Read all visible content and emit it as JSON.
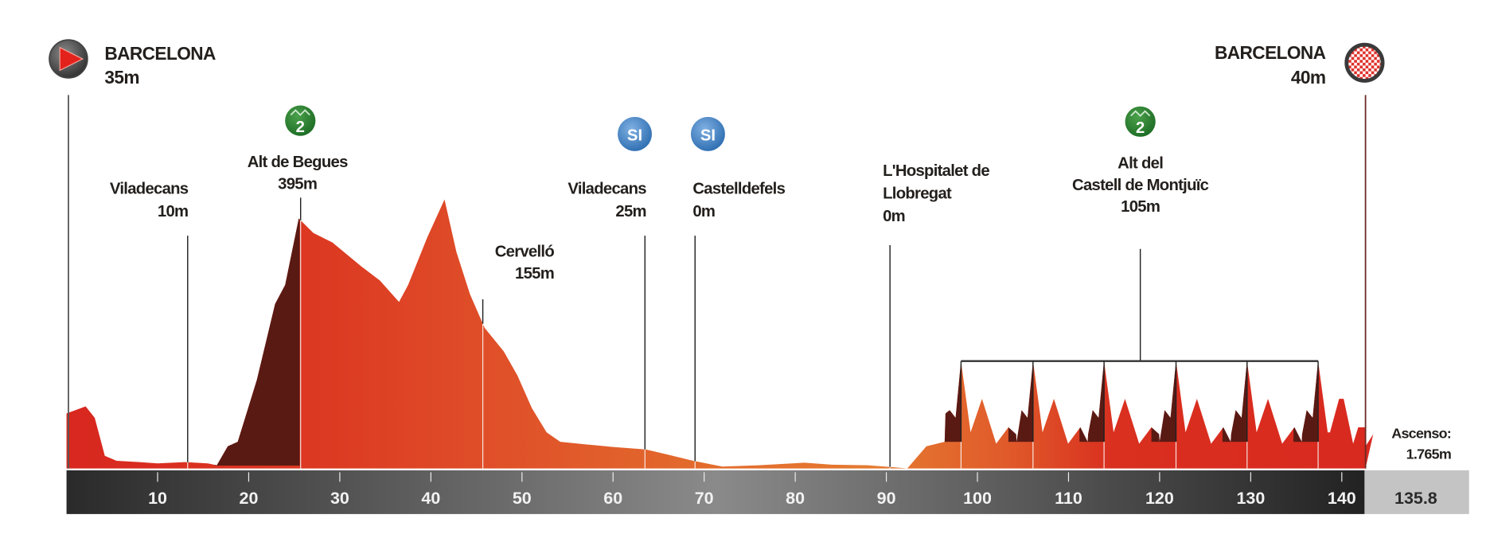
{
  "chart_data": {
    "type": "area",
    "title": "",
    "xlabel": "",
    "ylabel": "",
    "x_unit": "km",
    "y_unit": "m",
    "xlim": [
      0,
      142.6
    ],
    "ylim": [
      0,
      450
    ],
    "grid": false,
    "x_ticks": [
      10,
      20,
      30,
      40,
      50,
      60,
      70,
      80,
      90,
      100,
      110,
      120,
      130,
      140
    ],
    "total_distance": "135.8",
    "x": [
      0,
      2.1,
      3.1,
      4.2,
      5.5,
      8,
      10,
      13,
      15.5,
      16.5,
      17.7,
      18.8,
      20.9,
      22.9,
      24,
      25.5,
      27.1,
      29.2,
      32.3,
      34.4,
      36.5,
      37.5,
      39.6,
      41.5,
      42.8,
      44.3,
      45.9,
      48,
      49.5,
      51.1,
      52.7,
      54.2,
      57,
      60,
      63.6,
      65.7,
      68.8,
      72,
      76,
      81,
      84,
      88,
      90.7,
      92.3,
      94.4,
      96.5
    ],
    "elevation": [
      87,
      98,
      80,
      20,
      12,
      10,
      8,
      10,
      8,
      5,
      35,
      42,
      140,
      260,
      290,
      395,
      372,
      357,
      320,
      297,
      263,
      290,
      365,
      425,
      342,
      275,
      222,
      185,
      147,
      95,
      57,
      42,
      38,
      34,
      30,
      23,
      12,
      3,
      5,
      9,
      6,
      5,
      2,
      0,
      35,
      87
    ],
    "circuit": {
      "laps": 6,
      "peak_km": [
        98.2,
        106.1,
        113.9,
        121.8,
        129.6,
        137.4
      ],
      "lap_profile_offsets_km": [
        -1.8,
        -1.25,
        -0.6,
        0,
        1.05,
        2.3,
        3.85,
        5.2,
        6.05
      ],
      "lap_profile_elevation": [
        42,
        92,
        80,
        170,
        57,
        110,
        39,
        65,
        54
      ],
      "tail_x": [
        138.7,
        140.2,
        141.8,
        142.6
      ],
      "tail_elevation": [
        57,
        110,
        65,
        35
      ]
    },
    "colors": {
      "profile_red": "#d9291f",
      "profile_orange": "#e36a2c",
      "climb_dark": "#5a1a14",
      "axis_dark": "#2b2b2b",
      "axis_light": "#8a8a8a",
      "total_box": "#c4c4c4"
    }
  },
  "start": {
    "name": "BARCELONA",
    "altitude": "35m",
    "icon": "start-flag-icon"
  },
  "finish": {
    "name": "BARCELONA",
    "altitude": "40m",
    "icon": "checkered-flag-icon"
  },
  "waypoints": [
    {
      "name": "Viladecans",
      "altitude": "10m",
      "km": 13.3
    },
    {
      "name": "Alt de Begues",
      "altitude": "395m",
      "km": 25.7,
      "icon": "kom-category-2-icon",
      "icon_text": "2"
    },
    {
      "name": "Cervelló",
      "altitude": "155m",
      "km": 45.7
    },
    {
      "name": "Viladecans",
      "altitude": "25m",
      "km": 63.5,
      "icon": "intermediate-sprint-icon",
      "icon_text": "SI"
    },
    {
      "name": "Castelldefels",
      "altitude": "0m",
      "km": 69,
      "icon": "intermediate-sprint-icon",
      "icon_text": "SI"
    },
    {
      "name_line1": "L'Hospitalet de",
      "name_line2": "Llobregat",
      "altitude": "0m",
      "km": 90.4
    },
    {
      "name_line1": "Alt del",
      "name_line2": "Castell de Montjuïc",
      "altitude": "105m",
      "icon": "kom-category-2-icon",
      "icon_text": "2"
    }
  ],
  "ascent": {
    "label": "Ascenso:",
    "value": "1.765m"
  }
}
